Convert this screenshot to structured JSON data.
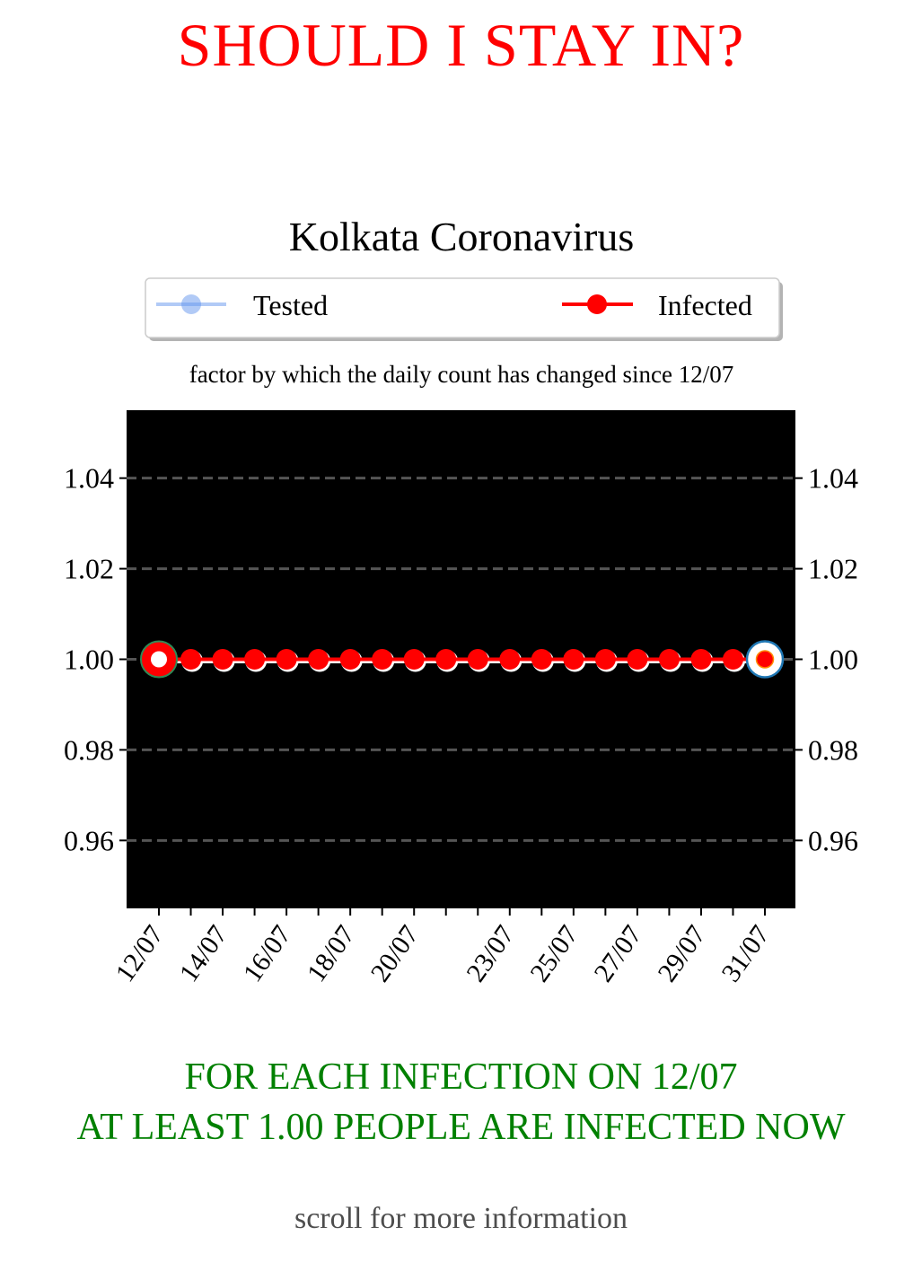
{
  "page": {
    "headline": "SHOULD I STAY IN?",
    "conclusion_line1": "FOR EACH INFECTION ON 12/07",
    "conclusion_line2": "AT LEAST 1.00 PEOPLE ARE INFECTED NOW",
    "scroll_hint": "scroll for more information"
  },
  "colors": {
    "headline": "#ff0000",
    "conclusion": "#008000",
    "scroll_hint": "#4d4d4d",
    "plot_background": "#000000",
    "infected": "#ff0000",
    "tested": "#6495ed",
    "grid": "#555555",
    "first_point_ring": "#2e8b57",
    "last_point_ring": "#1f77b4"
  },
  "chart_data": {
    "type": "line",
    "title": "Kolkata Coronavirus",
    "subtitle": "factor by which the daily count has changed since 12/07",
    "x": [
      "12/07",
      "13/07",
      "14/07",
      "15/07",
      "16/07",
      "17/07",
      "18/07",
      "19/07",
      "20/07",
      "21/07",
      "22/07",
      "23/07",
      "24/07",
      "25/07",
      "26/07",
      "27/07",
      "28/07",
      "29/07",
      "30/07",
      "31/07"
    ],
    "x_tick_labels": [
      "12/07",
      "14/07",
      "16/07",
      "18/07",
      "20/07",
      "23/07",
      "25/07",
      "27/07",
      "29/07",
      "31/07"
    ],
    "series": [
      {
        "name": "Tested",
        "values": [
          1.0,
          1.0,
          1.0,
          1.0,
          1.0,
          1.0,
          1.0,
          1.0,
          1.0,
          1.0,
          1.0,
          1.0,
          1.0,
          1.0,
          1.0,
          1.0,
          1.0,
          1.0,
          1.0,
          1.0
        ]
      },
      {
        "name": "Infected",
        "values": [
          1.0,
          1.0,
          1.0,
          1.0,
          1.0,
          1.0,
          1.0,
          1.0,
          1.0,
          1.0,
          1.0,
          1.0,
          1.0,
          1.0,
          1.0,
          1.0,
          1.0,
          1.0,
          1.0,
          1.0
        ]
      }
    ],
    "y_ticks": [
      "1.04",
      "1.02",
      "1.00",
      "0.98",
      "0.96"
    ],
    "ylim": [
      0.945,
      1.055
    ],
    "grid": "horizontal dashed",
    "legend_position": "top",
    "xlabel": "",
    "ylabel": ""
  }
}
